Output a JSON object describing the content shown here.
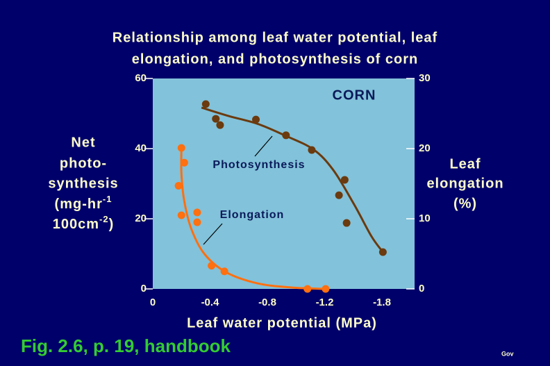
{
  "chart_data": {
    "type": "scatter",
    "title": [
      "Relationship among leaf water potential, leaf",
      "elongation, and photosynthesis of corn"
    ],
    "annotation": "CORN",
    "xlabel": "Leaf water potential (MPa)",
    "ylabel": {
      "lines": [
        "Net",
        "photo-",
        "synthesis"
      ],
      "unit1": "(mg-hr",
      "sup1": "-1",
      "unit2": "100cm",
      "sup2": "-2",
      "close": ")"
    },
    "y2label": [
      "Leaf",
      "elongation",
      "(%)"
    ],
    "xlim": [
      0,
      -2.14
    ],
    "xticks": [
      0,
      -0.4,
      -0.8,
      -1.2,
      -1.8
    ],
    "ylim": [
      0,
      60
    ],
    "yticks": [
      0,
      20,
      40,
      60
    ],
    "y2lim": [
      0,
      30
    ],
    "y2ticks": [
      0,
      10,
      20,
      30
    ],
    "series": [
      {
        "name": "Photosynthesis",
        "color": "#6b3a0e",
        "x": [
          -0.37,
          -0.44,
          -0.47,
          -0.72,
          -0.93,
          -1.11,
          -1.35,
          -1.41,
          -1.43,
          -1.81
        ],
        "values": [
          52.7,
          48.5,
          46.7,
          48.3,
          43.8,
          39.6,
          26.7,
          31.1,
          18.8,
          10.5
        ],
        "curve": {
          "x": [
            -0.34,
            -0.53,
            -0.73,
            -0.92,
            -1.12,
            -1.29,
            -1.51,
            -1.69,
            -1.81
          ],
          "y": [
            51.7,
            49.3,
            47.1,
            43.8,
            39.8,
            33.9,
            24.0,
            15.0,
            10.5
          ]
        }
      },
      {
        "name": "Elongation",
        "color": "#ff7010",
        "axis": "y2",
        "x": [
          -0.2,
          -0.22,
          -0.18,
          -0.2,
          -0.31,
          -0.31,
          -0.41,
          -0.5,
          -1.08,
          -1.21
        ],
        "values": [
          20.1,
          18.0,
          14.7,
          10.5,
          10.9,
          9.5,
          3.3,
          2.5,
          0,
          0
        ],
        "curve": {
          "x": [
            -0.2,
            -0.2,
            -0.22,
            -0.27,
            -0.36,
            -0.51,
            -0.73,
            -0.97,
            -1.21
          ],
          "y": [
            20.1,
            16.4,
            12.5,
            8.5,
            5.0,
            2.4,
            0.8,
            0.2,
            0
          ]
        }
      }
    ],
    "footer": "Fig. 2.6, p. 19, handbook",
    "credit": "Gov"
  }
}
